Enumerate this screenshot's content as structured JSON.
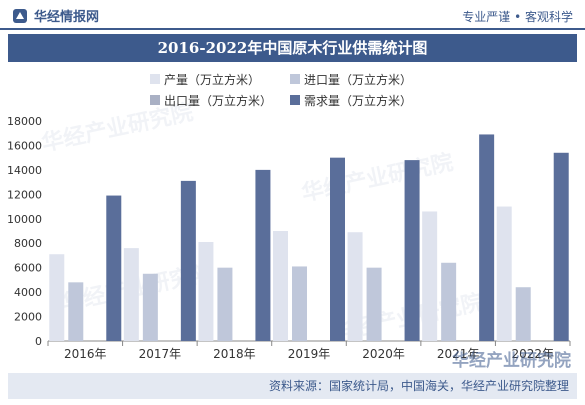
{
  "header": {
    "brand": "华经情报网",
    "slogan": "专业严谨 • 客观科学"
  },
  "colors": {
    "primary": "#3d5a8c",
    "production": "#dfe3ee",
    "import": "#bfc7da",
    "export": "#a9b0c4",
    "demand": "#5a6e9a"
  },
  "watermark": "华经产业研究院",
  "chart_data": {
    "type": "bar",
    "title": "2016-2022年中国原木行业供需统计图",
    "categories": [
      "2016年",
      "2017年",
      "2018年",
      "2019年",
      "2020年",
      "2021年",
      "2022年"
    ],
    "series": [
      {
        "name": "产量（万立方米）",
        "values": [
          7100,
          7600,
          8100,
          9000,
          8900,
          10600,
          11000
        ]
      },
      {
        "name": "进口量（万立方米）",
        "values": [
          4800,
          5500,
          6000,
          6100,
          6000,
          6400,
          4400
        ]
      },
      {
        "name": "出口量（万立方米）",
        "values": [
          0,
          0,
          0,
          0,
          0,
          0,
          0
        ]
      },
      {
        "name": "需求量（万立方米）",
        "values": [
          11900,
          13100,
          14000,
          15000,
          14800,
          16900,
          15400
        ]
      }
    ],
    "yticks": [
      0,
      2000,
      4000,
      6000,
      8000,
      10000,
      12000,
      14000,
      16000,
      18000
    ],
    "ylim": [
      0,
      18000
    ],
    "legend_position": "top-left",
    "grid": false
  },
  "source": "资料来源：国家统计局，中国海关，华经产业研究院整理"
}
